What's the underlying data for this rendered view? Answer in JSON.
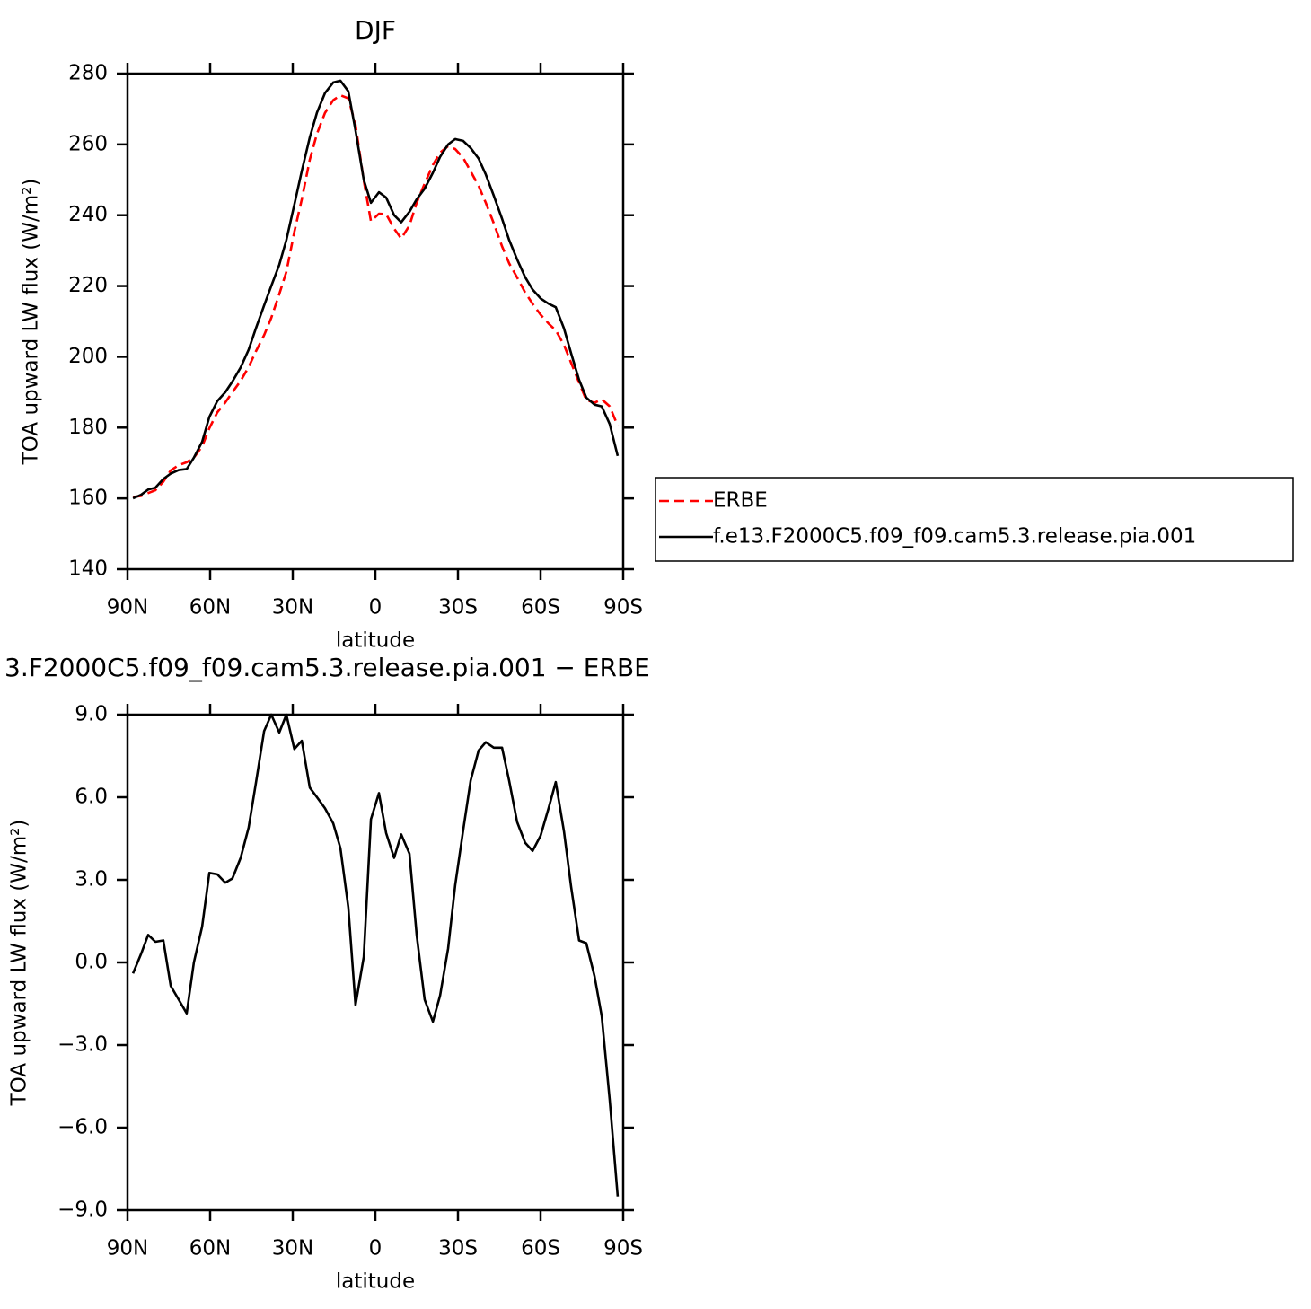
{
  "chart_data": [
    {
      "type": "line",
      "title": "DJF",
      "xlabel": "latitude",
      "ylabel": "TOA upward LW flux (W/m²)",
      "x": [
        88.0,
        85.1,
        82.5,
        79.9,
        77.0,
        74.3,
        71.4,
        68.5,
        65.9,
        62.9,
        60.3,
        57.4,
        54.5,
        51.9,
        48.9,
        46.0,
        43.4,
        40.4,
        37.8,
        34.9,
        32.3,
        29.4,
        26.7,
        23.8,
        21.2,
        18.3,
        15.3,
        12.7,
        9.8,
        7.2,
        4.2,
        1.6,
        -1.3,
        -3.9,
        -6.8,
        -9.4,
        -12.4,
        -15.0,
        -17.9,
        -20.9,
        -23.5,
        -26.4,
        -29.0,
        -31.9,
        -34.6,
        -37.5,
        -40.1,
        -43.0,
        -46.0,
        -48.6,
        -51.5,
        -54.4,
        -57.1,
        -60.0,
        -62.9,
        -65.5,
        -68.5,
        -71.1,
        -74.0,
        -76.6,
        -79.6,
        -82.2,
        -85.1,
        -88.0
      ],
      "series": [
        {
          "name": "ERBE",
          "color": "#ff0000",
          "dashed": true,
          "values": [
            160.4,
            160.7,
            161.5,
            162.3,
            164.7,
            167.9,
            169.4,
            170.2,
            171.5,
            174.7,
            179.8,
            184.3,
            187.1,
            190.0,
            193.2,
            197.1,
            201.5,
            206.1,
            211.0,
            217.7,
            224.0,
            235.3,
            244.5,
            255.7,
            263.0,
            268.9,
            272.5,
            273.9,
            273.0,
            265.6,
            249.8,
            238.3,
            240.4,
            240.3,
            236.2,
            233.4,
            237.1,
            243.5,
            248.9,
            254.2,
            257.7,
            259.5,
            258.7,
            256.2,
            252.4,
            248.3,
            243.5,
            237.7,
            231.2,
            226.4,
            222.4,
            218.2,
            215.0,
            211.9,
            209.4,
            207.5,
            203.3,
            198.3,
            192.7,
            187.8,
            187.0,
            188.0,
            186.0,
            180.5
          ]
        },
        {
          "name": "f.e13.F2000C5.f09_f09.cam5.3.release.pia.001",
          "color": "#000000",
          "dashed": false,
          "values": [
            160.0,
            161.0,
            162.5,
            163.0,
            165.5,
            167.0,
            168.0,
            168.3,
            171.5,
            176.0,
            183.0,
            187.5,
            190.0,
            193.0,
            197.0,
            202.0,
            208.0,
            214.5,
            220.0,
            226.0,
            233.0,
            243.0,
            252.5,
            262.0,
            269.0,
            274.5,
            277.5,
            278.0,
            275.0,
            264.0,
            250.0,
            243.5,
            246.5,
            245.0,
            240.0,
            238.0,
            241.0,
            244.5,
            247.5,
            252.0,
            256.5,
            260.0,
            261.5,
            261.0,
            259.0,
            256.0,
            251.5,
            245.5,
            239.0,
            233.0,
            227.5,
            222.5,
            219.0,
            216.5,
            215.0,
            214.0,
            208.0,
            201.0,
            193.5,
            188.5,
            186.5,
            186.0,
            181.0,
            172.0
          ]
        }
      ],
      "xlim": [
        90,
        -90
      ],
      "xticks": [
        {
          "value": 90,
          "label": "90N"
        },
        {
          "value": 60,
          "label": "60N"
        },
        {
          "value": 30,
          "label": "30N"
        },
        0,
        {
          "value": -30,
          "label": "30S"
        },
        {
          "value": -60,
          "label": "60S"
        },
        {
          "value": -90,
          "label": "90S"
        }
      ],
      "ylim": [
        140,
        280
      ],
      "yticks": [
        140,
        160,
        180,
        200,
        220,
        240,
        260,
        280
      ],
      "legend": "right"
    },
    {
      "type": "line",
      "title": "3.F2000C5.f09_f09.cam5.3.release.pia.001 − ERBE",
      "xlabel": "latitude",
      "ylabel": "TOA upward LW flux (W/m²)",
      "x": [
        88.0,
        85.1,
        82.5,
        79.9,
        77.0,
        74.3,
        71.4,
        68.5,
        65.9,
        62.9,
        60.3,
        57.4,
        54.5,
        51.9,
        48.9,
        46.0,
        43.4,
        40.4,
        37.8,
        34.9,
        32.3,
        29.4,
        26.7,
        23.8,
        21.2,
        18.3,
        15.3,
        12.7,
        9.8,
        7.2,
        4.2,
        1.6,
        -1.3,
        -3.9,
        -6.8,
        -9.4,
        -12.4,
        -15.0,
        -17.9,
        -20.9,
        -23.5,
        -26.4,
        -29.0,
        -31.9,
        -34.6,
        -37.5,
        -40.1,
        -43.0,
        -46.0,
        -48.6,
        -51.5,
        -54.4,
        -57.1,
        -60.0,
        -62.9,
        -65.5,
        -68.5,
        -71.1,
        -74.0,
        -76.6,
        -79.6,
        -82.2,
        -85.1,
        -88.0
      ],
      "color": "#000000",
      "values": [
        -0.4,
        0.3,
        1.0,
        0.75,
        0.8,
        -0.85,
        -1.35,
        -1.85,
        0.0,
        1.3,
        3.25,
        3.2,
        2.9,
        3.05,
        3.8,
        4.9,
        6.5,
        8.4,
        9.0,
        8.35,
        9.0,
        7.75,
        8.05,
        6.35,
        6.0,
        5.6,
        5.05,
        4.15,
        2.0,
        -1.55,
        0.2,
        5.2,
        6.15,
        4.7,
        3.8,
        4.65,
        3.95,
        1.0,
        -1.35,
        -2.15,
        -1.2,
        0.5,
        2.8,
        4.8,
        6.6,
        7.7,
        8.0,
        7.8,
        7.8,
        6.6,
        5.1,
        4.35,
        4.05,
        4.6,
        5.6,
        6.55,
        4.75,
        2.75,
        0.8,
        0.7,
        -0.5,
        -1.95,
        -5.0,
        -8.5
      ],
      "xlim": [
        90,
        -90
      ],
      "xticks": [
        {
          "value": 90,
          "label": "90N"
        },
        {
          "value": 60,
          "label": "60N"
        },
        {
          "value": 30,
          "label": "30N"
        },
        0,
        {
          "value": -30,
          "label": "30S"
        },
        {
          "value": -60,
          "label": "60S"
        },
        {
          "value": -90,
          "label": "90S"
        }
      ],
      "ylim": [
        -9,
        9
      ],
      "yticks": [
        {
          "value": -9,
          "label": "−9.0"
        },
        {
          "value": -6,
          "label": "−6.0"
        },
        {
          "value": -3,
          "label": "−3.0"
        },
        {
          "value": 0,
          "label": "0.0"
        },
        {
          "value": 3,
          "label": "3.0"
        },
        {
          "value": 6,
          "label": "6.0"
        },
        {
          "value": 9,
          "label": "9.0"
        }
      ]
    }
  ]
}
